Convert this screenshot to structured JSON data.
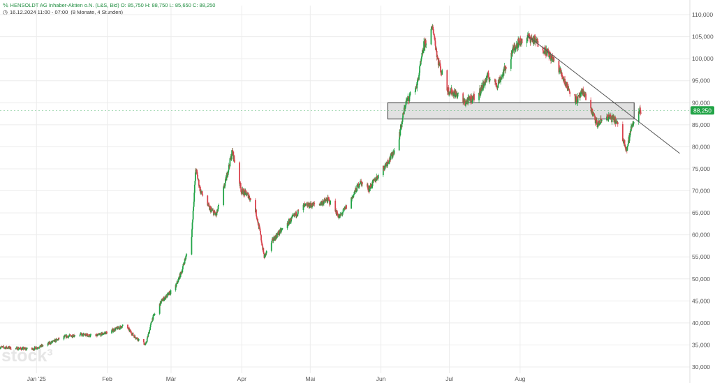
{
  "header": {
    "line1_icon": "chart-icon",
    "instrument": "HENSOLDT AG Inhaber-Aktien o.N. (L&S, Bid)",
    "ohlc": [
      {
        "label": "O:",
        "value": "85,750"
      },
      {
        "label": "H:",
        "value": "88,750"
      },
      {
        "label": "L:",
        "value": "85,650"
      },
      {
        "label": "C:",
        "value": "88,250"
      }
    ],
    "line2_icon": "clock-icon",
    "timestamp": "16.12.2024 11:00 - 07:00",
    "period": "(8 Monate, 4 Stunden)"
  },
  "watermark": "stock³",
  "colors": {
    "up": "#22a447",
    "down": "#d9434e",
    "grid": "#ececec",
    "zone_fill": "#dcdcdc",
    "zone_stroke": "#333333",
    "trendline": "#555555",
    "price_tag": "#22a447"
  },
  "current_price_label": "88,250",
  "chart_data": {
    "type": "candlestick",
    "ylim": [
      29,
      112
    ],
    "y_ticks": [
      30,
      35,
      40,
      45,
      50,
      55,
      60,
      65,
      70,
      75,
      80,
      85,
      90,
      95,
      100,
      105,
      110
    ],
    "y_tick_labels": [
      "30,000",
      "35,000",
      "40,000",
      "45,000",
      "50,000",
      "55,000",
      "60,000",
      "65,000",
      "70,000",
      "75,000",
      "80,000",
      "85,000",
      "90,000",
      "95,000",
      "100,000",
      "105,000",
      "110,000"
    ],
    "x_ticks": [
      {
        "date": "2025-01-01",
        "label": "Jan '25"
      },
      {
        "date": "2025-02-01",
        "label": "Feb"
      },
      {
        "date": "2025-03-01",
        "label": "Mär"
      },
      {
        "date": "2025-04-01",
        "label": "Apr"
      },
      {
        "date": "2025-05-01",
        "label": "Mai"
      },
      {
        "date": "2025-06-01",
        "label": "Jun"
      },
      {
        "date": "2025-07-01",
        "label": "Jul"
      },
      {
        "date": "2025-08-01",
        "label": "Aug"
      }
    ],
    "xlim": [
      "2024-12-16",
      "2025-09-23"
    ],
    "grid": true,
    "price_path": [
      [
        "2024-12-16",
        34.5
      ],
      [
        "2024-12-30",
        34.0
      ],
      [
        "2025-01-06",
        35.2
      ],
      [
        "2025-01-13",
        36.8
      ],
      [
        "2025-01-20",
        37.4
      ],
      [
        "2025-01-27",
        37.0
      ],
      [
        "2025-02-03",
        38.2
      ],
      [
        "2025-02-09",
        39.5
      ],
      [
        "2025-02-13",
        37.0
      ],
      [
        "2025-02-18",
        35.0
      ],
      [
        "2025-02-21",
        41.0
      ],
      [
        "2025-02-25",
        45.0
      ],
      [
        "2025-03-03",
        48.0
      ],
      [
        "2025-03-06",
        52.0
      ],
      [
        "2025-03-07",
        54.0
      ],
      [
        "2025-03-10",
        58.5
      ],
      [
        "2025-03-12",
        75.0
      ],
      [
        "2025-03-14",
        70.0
      ],
      [
        "2025-03-18",
        66.0
      ],
      [
        "2025-03-21",
        64.5
      ],
      [
        "2025-03-25",
        72.0
      ],
      [
        "2025-03-28",
        79.0
      ],
      [
        "2025-04-01",
        70.0
      ],
      [
        "2025-04-04",
        69.0
      ],
      [
        "2025-04-07",
        66.0
      ],
      [
        "2025-04-09",
        61.0
      ],
      [
        "2025-04-11",
        55.0
      ],
      [
        "2025-04-15",
        59.0
      ],
      [
        "2025-04-22",
        63.0
      ],
      [
        "2025-04-28",
        66.5
      ],
      [
        "2025-05-05",
        67.0
      ],
      [
        "2025-05-09",
        68.0
      ],
      [
        "2025-05-14",
        64.0
      ],
      [
        "2025-05-19",
        68.0
      ],
      [
        "2025-05-23",
        72.0
      ],
      [
        "2025-05-27",
        70.5
      ],
      [
        "2025-06-02",
        75.0
      ],
      [
        "2025-06-06",
        78.0
      ],
      [
        "2025-06-09",
        82.0
      ],
      [
        "2025-06-12",
        90.0
      ],
      [
        "2025-06-17",
        94.0
      ],
      [
        "2025-06-20",
        103.0
      ],
      [
        "2025-06-24",
        107.0
      ],
      [
        "2025-06-26",
        100.0
      ],
      [
        "2025-06-30",
        93.0
      ],
      [
        "2025-07-04",
        92.0
      ],
      [
        "2025-07-08",
        90.0
      ],
      [
        "2025-07-14",
        92.0
      ],
      [
        "2025-07-18",
        96.0
      ],
      [
        "2025-07-22",
        94.0
      ],
      [
        "2025-07-25",
        97.0
      ],
      [
        "2025-07-30",
        103.0
      ],
      [
        "2025-08-04",
        105.0
      ],
      [
        "2025-08-08",
        104.0
      ],
      [
        "2025-08-13",
        101.5
      ],
      [
        "2025-08-18",
        98.0
      ],
      [
        "2025-08-22",
        93.5
      ],
      [
        "2025-08-26",
        90.5
      ],
      [
        "2025-08-29",
        92.5
      ],
      [
        "2025-09-02",
        87.5
      ],
      [
        "2025-09-04",
        85.0
      ],
      [
        "2025-09-08",
        87.0
      ],
      [
        "2025-09-12",
        86.0
      ],
      [
        "2025-09-15",
        82.0
      ],
      [
        "2025-09-17",
        79.5
      ],
      [
        "2025-09-19",
        84.5
      ],
      [
        "2025-09-22",
        88.25
      ]
    ],
    "zone": {
      "date_start": "2025-06-04",
      "date_end": "2025-09-20",
      "y_low": 86.3,
      "y_high": 90.0
    },
    "trendline": {
      "start": [
        "2025-08-04",
        105.3
      ],
      "end": [
        "2025-10-10",
        78.5
      ]
    }
  }
}
